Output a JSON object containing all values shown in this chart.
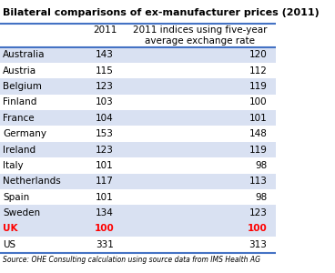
{
  "title": "Bilateral comparisons of ex-manufacturer prices (2011)",
  "col1_header": "2011",
  "col2_header": "2011 indices using five-year\naverage exchange rate",
  "countries": [
    "Australia",
    "Austria",
    "Belgium",
    "Finland",
    "France",
    "Germany",
    "Ireland",
    "Italy",
    "Netherlands",
    "Spain",
    "Sweden",
    "UK",
    "US"
  ],
  "col1_values": [
    143,
    115,
    123,
    103,
    104,
    153,
    123,
    101,
    117,
    101,
    134,
    100,
    331
  ],
  "col2_values": [
    120,
    112,
    119,
    100,
    101,
    148,
    119,
    98,
    113,
    98,
    123,
    100,
    313
  ],
  "highlight_row": 11,
  "highlight_color": "#ff0000",
  "shaded_rows": [
    0,
    2,
    4,
    6,
    8,
    10,
    11
  ],
  "shade_color": "#d9e1f2",
  "source_text": "Source: OHE Consulting calculation using source data from IMS Health AG",
  "header_line_color": "#4472c4",
  "background_color": "#ffffff",
  "text_color": "#000000",
  "font_size": 7.5,
  "header_font_size": 7.5
}
